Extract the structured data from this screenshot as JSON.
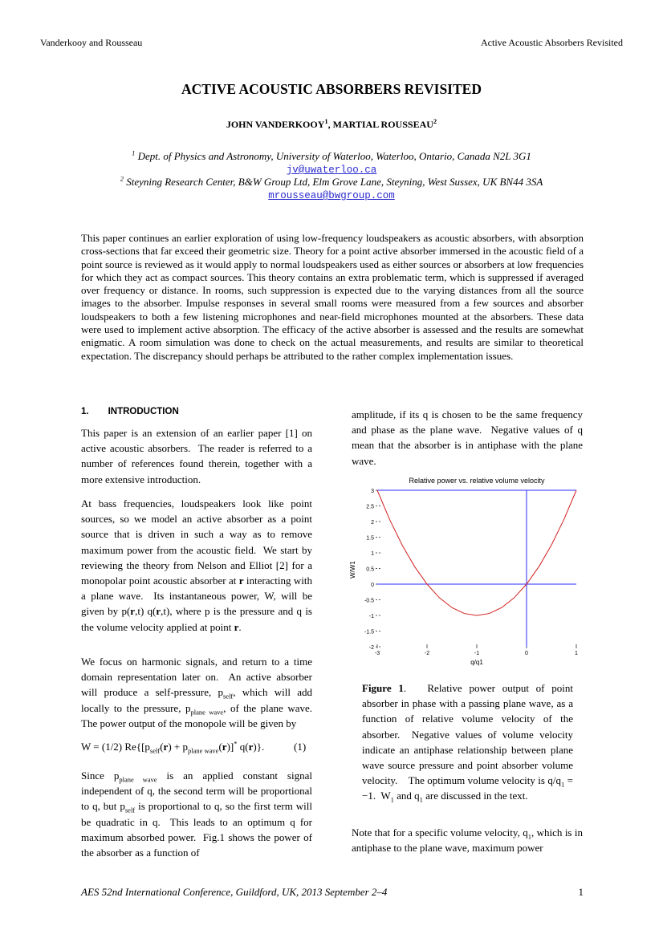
{
  "header": {
    "left": "Vanderkooy and Rousseau",
    "right": "Active Acoustic Absorbers Revisited"
  },
  "title": "ACTIVE ACOUSTIC ABSORBERS REVISITED",
  "authors": [
    "JOHN VANDERKOOY",
    {
      "sup": "1"
    },
    ", MARTIAL ROUSSEAU",
    {
      "sup": "2"
    }
  ],
  "affiliations": [
    {
      "mark": "1",
      "text": "Dept. of Physics and Astronomy, University of Waterloo, Waterloo, Ontario, Canada  N2L 3G1",
      "email": "jv@uwaterloo.ca"
    },
    {
      "mark": "2",
      "text": "Steyning Research Center, B&W Group Ltd, Elm Grove Lane, Steyning, West Sussex, UK  BN44 3SA",
      "email": "mrousseau@bwgroup.com"
    }
  ],
  "abstract": "This paper continues an earlier exploration of using low-frequency loudspeakers as acoustic absorbers, with absorption cross-sections that far exceed their geometric size.  Theory for a point active absorber immersed in the acoustic field of a point source is reviewed as it would apply to normal loudspeakers used as either sources or absorbers at low frequencies for which they act as compact sources.  This theory contains an extra problematic term, which is suppressed if averaged over frequency or distance.  In rooms, such suppression is expected due to the varying distances from all the source images to the absorber.  Impulse responses in several small rooms were measured from a few sources and absorber loudspeakers to both a few listening microphones and near-field microphones mounted at the absorbers.  These data were used to implement active absorption.  The efficacy of the active absorber is assessed and the results are somewhat enigmatic.  A room simulation was done to check on the actual measurements, and results are similar to theoretical expectation.  The discrepancy should perhaps be attributed to the rather complex implementation issues.",
  "section": {
    "number": "1.",
    "title": "INTRODUCTION"
  },
  "left_column": [
    [
      "This paper is an extension of an earlier paper [1] on active acoustic absorbers.  The reader is referred to a number of references found therein, together with a more extensive introduction."
    ],
    [
      "At bass frequencies, loudspeakers look like point sources, so we model an active absorber as a point source that is driven in such a way as to remove maximum power from the acoustic field.  We start by reviewing the theory from Nelson and Elliot [2] for a monopolar point acoustic absorber at ",
      {
        "b": "r"
      },
      " interacting with a plane wave.  Its instantaneous power, W, will be given by p(",
      {
        "b": "r"
      },
      ",t) q(",
      {
        "b": "r"
      },
      ",t), where p is the pressure and q is the volume velocity applied at point ",
      {
        "b": "r"
      },
      "."
    ],
    [
      "We focus on harmonic signals, and return to a time domain representation later on.  An active absorber will produce a self-pressure, p",
      {
        "sub": "self"
      },
      ", which will add locally to the pressure, p",
      {
        "sub": "plane wave"
      },
      ", of the plane wave.  The power output of the monopole will be given by"
    ]
  ],
  "equation": {
    "runs": [
      "W = (1/2) Re{[p",
      {
        "sub": "self"
      },
      "(",
      {
        "b": "r"
      },
      ") + p",
      {
        "sub": "plane wave"
      },
      "(",
      {
        "b": "r"
      },
      ")]",
      {
        "sup": "*"
      },
      " q(",
      {
        "b": "r"
      },
      ")}."
    ],
    "number": "(1)"
  },
  "left_column_end": [
    "Since p",
    {
      "sub": "plane wave"
    },
    " is an applied constant signal independent of q, the second term will be proportional to q, but p",
    {
      "sub": "self"
    },
    " is proportional to q, so the first term will be quadratic in q.  This leads to an optimum q for maximum absorbed power.  Fig.1 shows the power of the absorber as a function of"
  ],
  "right_column": [
    "amplitude, if its q is chosen to be the same frequency and phase as the plane wave.  Negative values of q mean that the absorber is in antiphase with the plane wave."
  ],
  "chart_data": {
    "type": "line",
    "title": "Relative power vs. relative volume velocity",
    "x_label": "q/q1",
    "y_label": "W/W1",
    "x": [
      -3,
      -2.75,
      -2.5,
      -2.25,
      -2,
      -1.75,
      -1.5,
      -1.25,
      -1,
      -0.75,
      -0.5,
      -0.25,
      0,
      0.25,
      0.5,
      0.75,
      1
    ],
    "series": [
      {
        "name": "W/W1",
        "color": "#d42020",
        "values": [
          3,
          2.0625,
          1.25,
          0.5625,
          0,
          -0.4375,
          -0.75,
          -0.9375,
          -1,
          -0.9375,
          -0.75,
          -0.4375,
          0,
          0.5625,
          1.25,
          2.0625,
          3
        ]
      }
    ],
    "xlim": [
      -3,
      1
    ],
    "ylim": [
      -2,
      3
    ],
    "xticks": [
      -3,
      -2,
      -1,
      0,
      1
    ],
    "yticks": [
      -2,
      -1.5,
      -1,
      -0.5,
      0,
      0.5,
      1,
      1.5,
      2,
      2.5,
      3
    ],
    "reference_lines": {
      "x": 0,
      "y": 0,
      "color": "#2a2aff"
    }
  },
  "caption": [
    {
      "b": "Figure 1"
    },
    ".   Relative power output of point absorber in phase with a passing plane wave, as a function of relative volume velocity of the absorber.  Negative values of volume velocity indicate an antiphase relationship between plane wave source pressure and point absorber volume velocity.    The optimum volume velocity is q/q",
    {
      "sub": "1"
    },
    " = −1.  W",
    {
      "sub": "1"
    },
    " and q",
    {
      "sub": "1"
    },
    " are discussed in the text."
  ],
  "right_column_end": [
    "Note that for a specific volume velocity, q",
    {
      "sub": "1"
    },
    ", which is in antiphase to the plane wave, maximum power"
  ],
  "footer": {
    "text": "AES 52nd International Conference, Guildford, UK, 2013 September 2–4",
    "page": "1"
  }
}
